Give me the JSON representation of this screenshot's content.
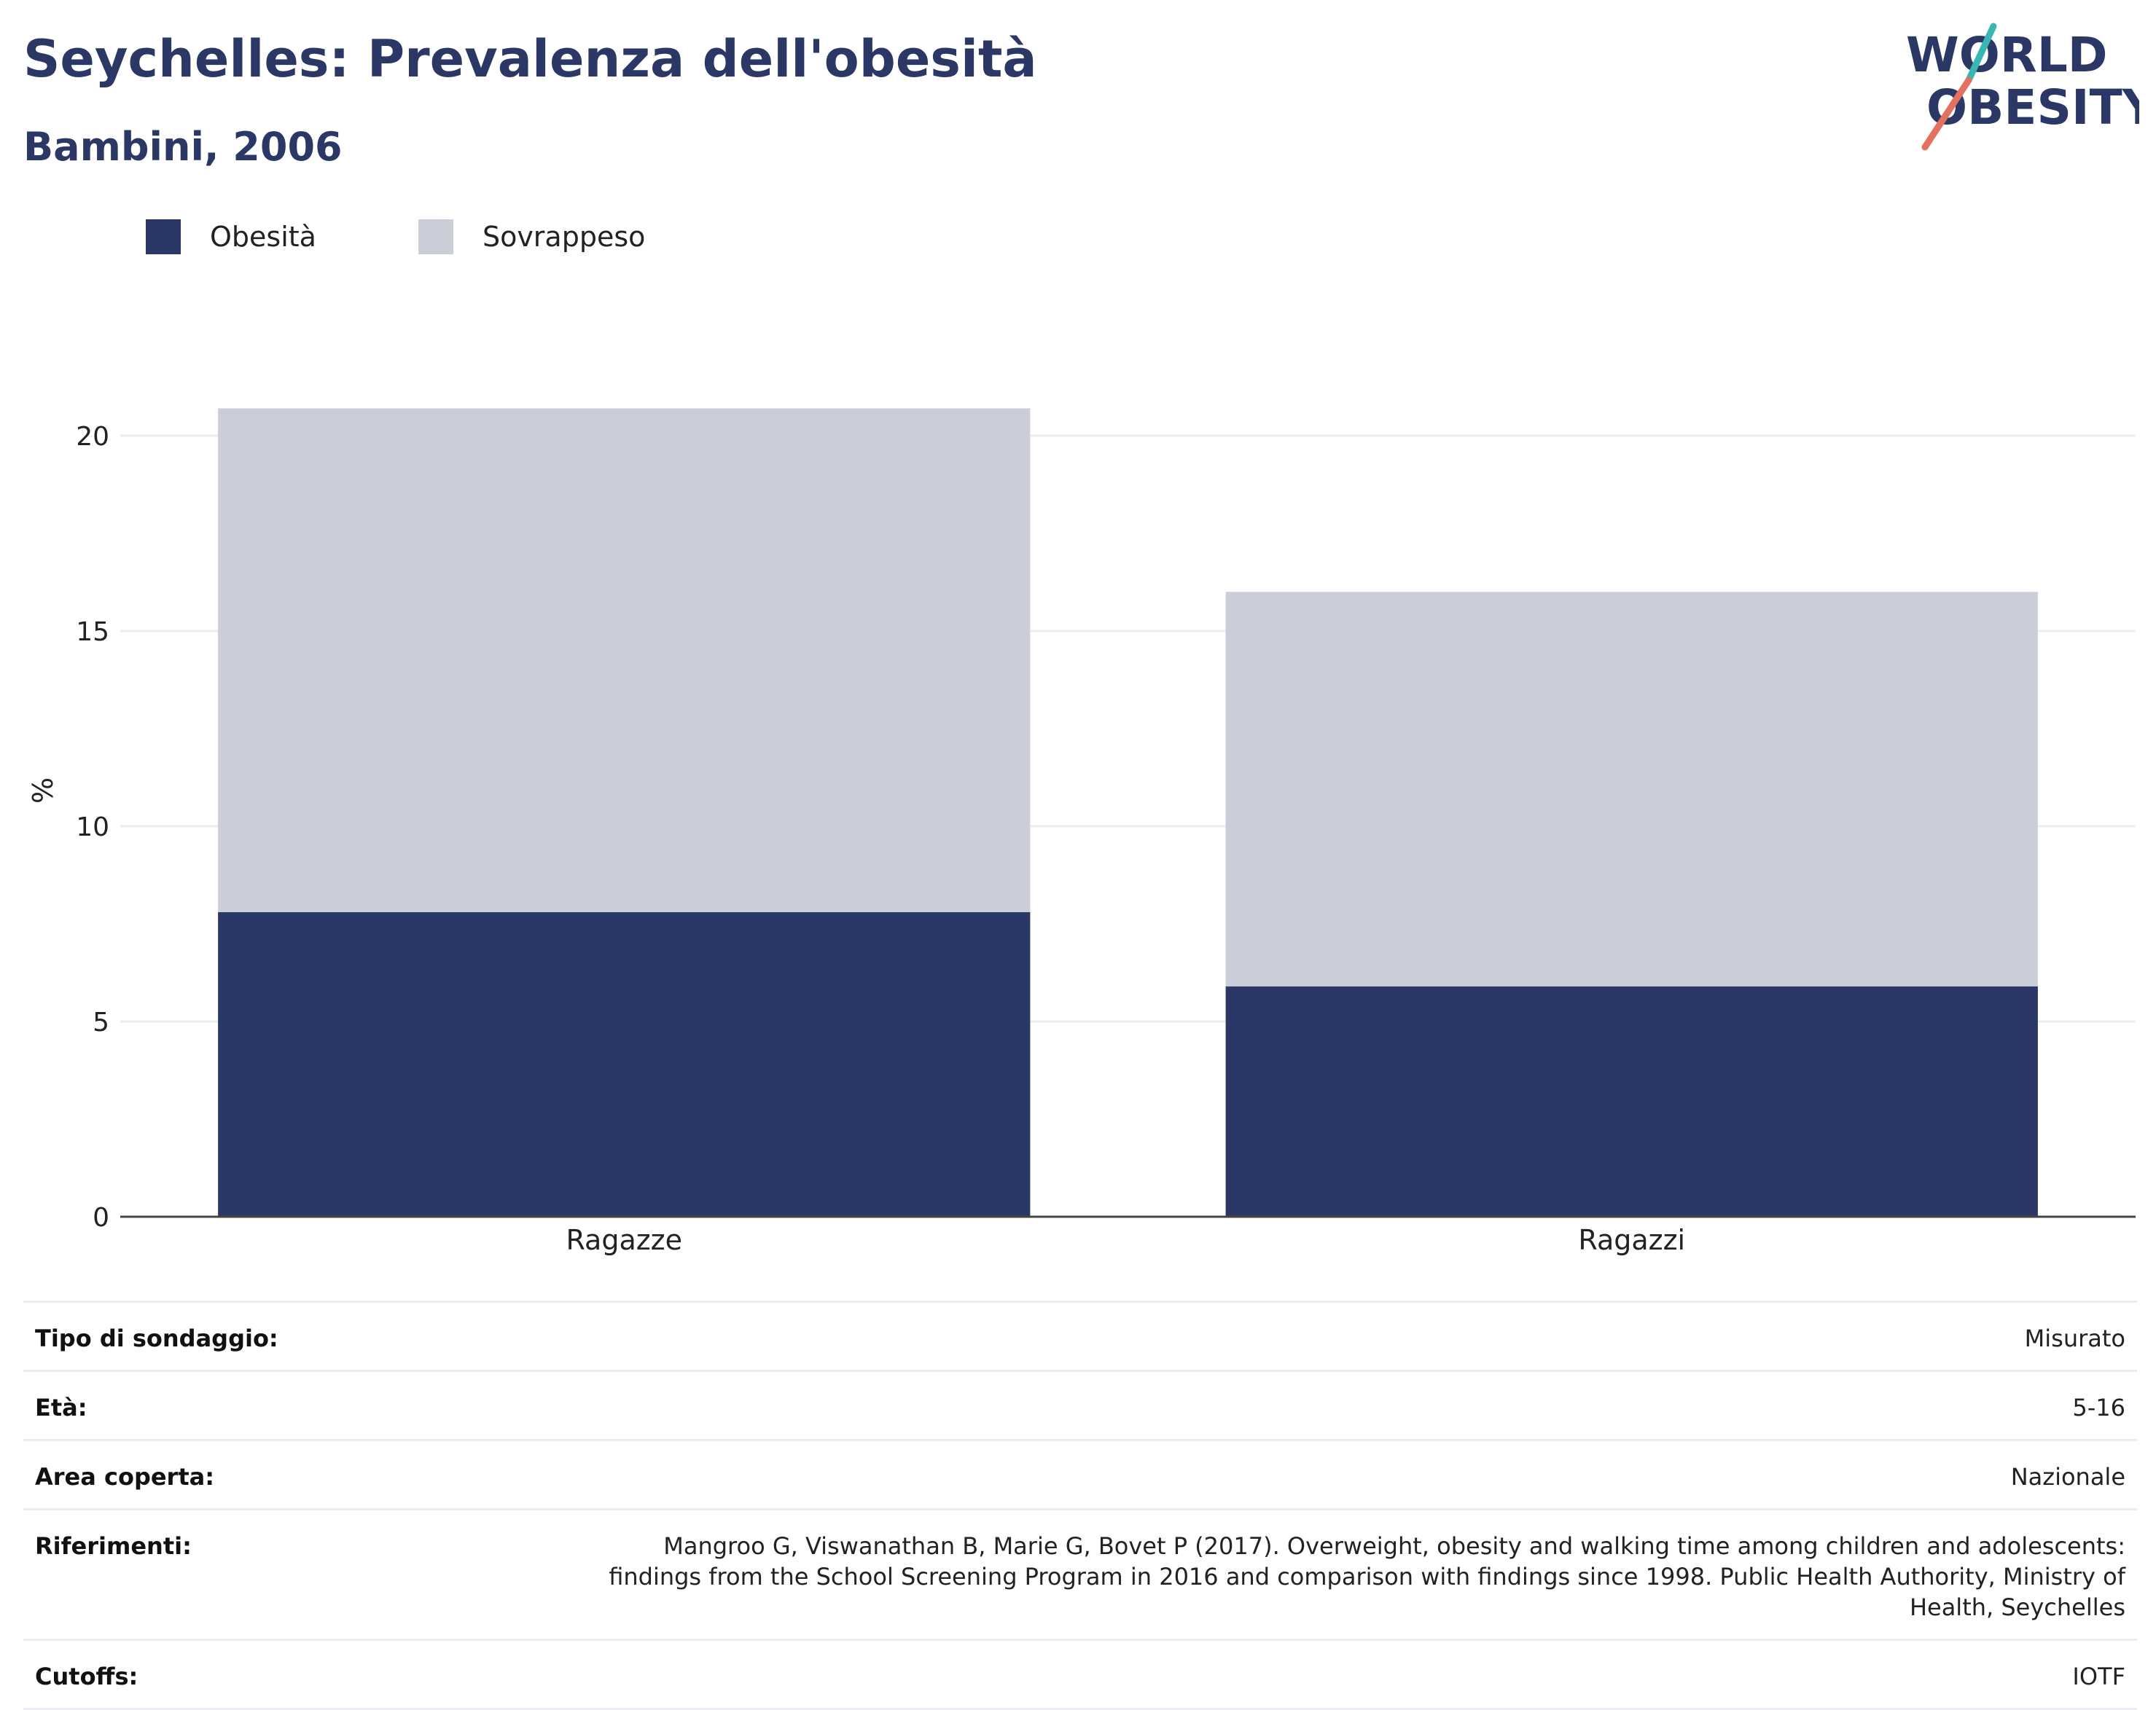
{
  "header": {
    "title": "Seychelles: Prevalenza dell'obesità",
    "subtitle": "Bambini, 2006"
  },
  "logo": {
    "line1": "WORLD",
    "line2": "OBESITY",
    "accent_teal": "#3ab7b5",
    "accent_coral": "#e4705f"
  },
  "colors": {
    "obesity": "#2b3764",
    "overweight": "#cbcdd9",
    "grid": "#ebedf2",
    "axis": "#444444",
    "title": "#2b3764"
  },
  "chart_data": {
    "type": "bar",
    "stacked": true,
    "categories": [
      "Ragazze",
      "Ragazzi"
    ],
    "series": [
      {
        "name": "Obesità",
        "values": [
          7.8,
          5.9
        ]
      },
      {
        "name": "Sovrappeso",
        "values": [
          12.9,
          10.1
        ]
      }
    ],
    "ylabel": "%",
    "xlabel": "",
    "ylim": [
      0,
      22
    ],
    "yticks": [
      0,
      5,
      10,
      15,
      20
    ],
    "grid": true,
    "legend_position": "top-left"
  },
  "info": {
    "rows": [
      {
        "label": "Tipo di sondaggio:",
        "value": "Misurato"
      },
      {
        "label": "Età:",
        "value": "5-16"
      },
      {
        "label": "Area coperta:",
        "value": "Nazionale"
      },
      {
        "label": "Riferimenti:",
        "value": "Mangroo G, Viswanathan B, Marie G, Bovet P (2017). Overweight, obesity and walking time among children and adolescents: findings from the School Screening Program in 2016 and comparison with findings since 1998. Public Health Authority, Ministry of Health, Seychelles"
      },
      {
        "label": "Cutoffs:",
        "value": "IOTF"
      }
    ]
  }
}
